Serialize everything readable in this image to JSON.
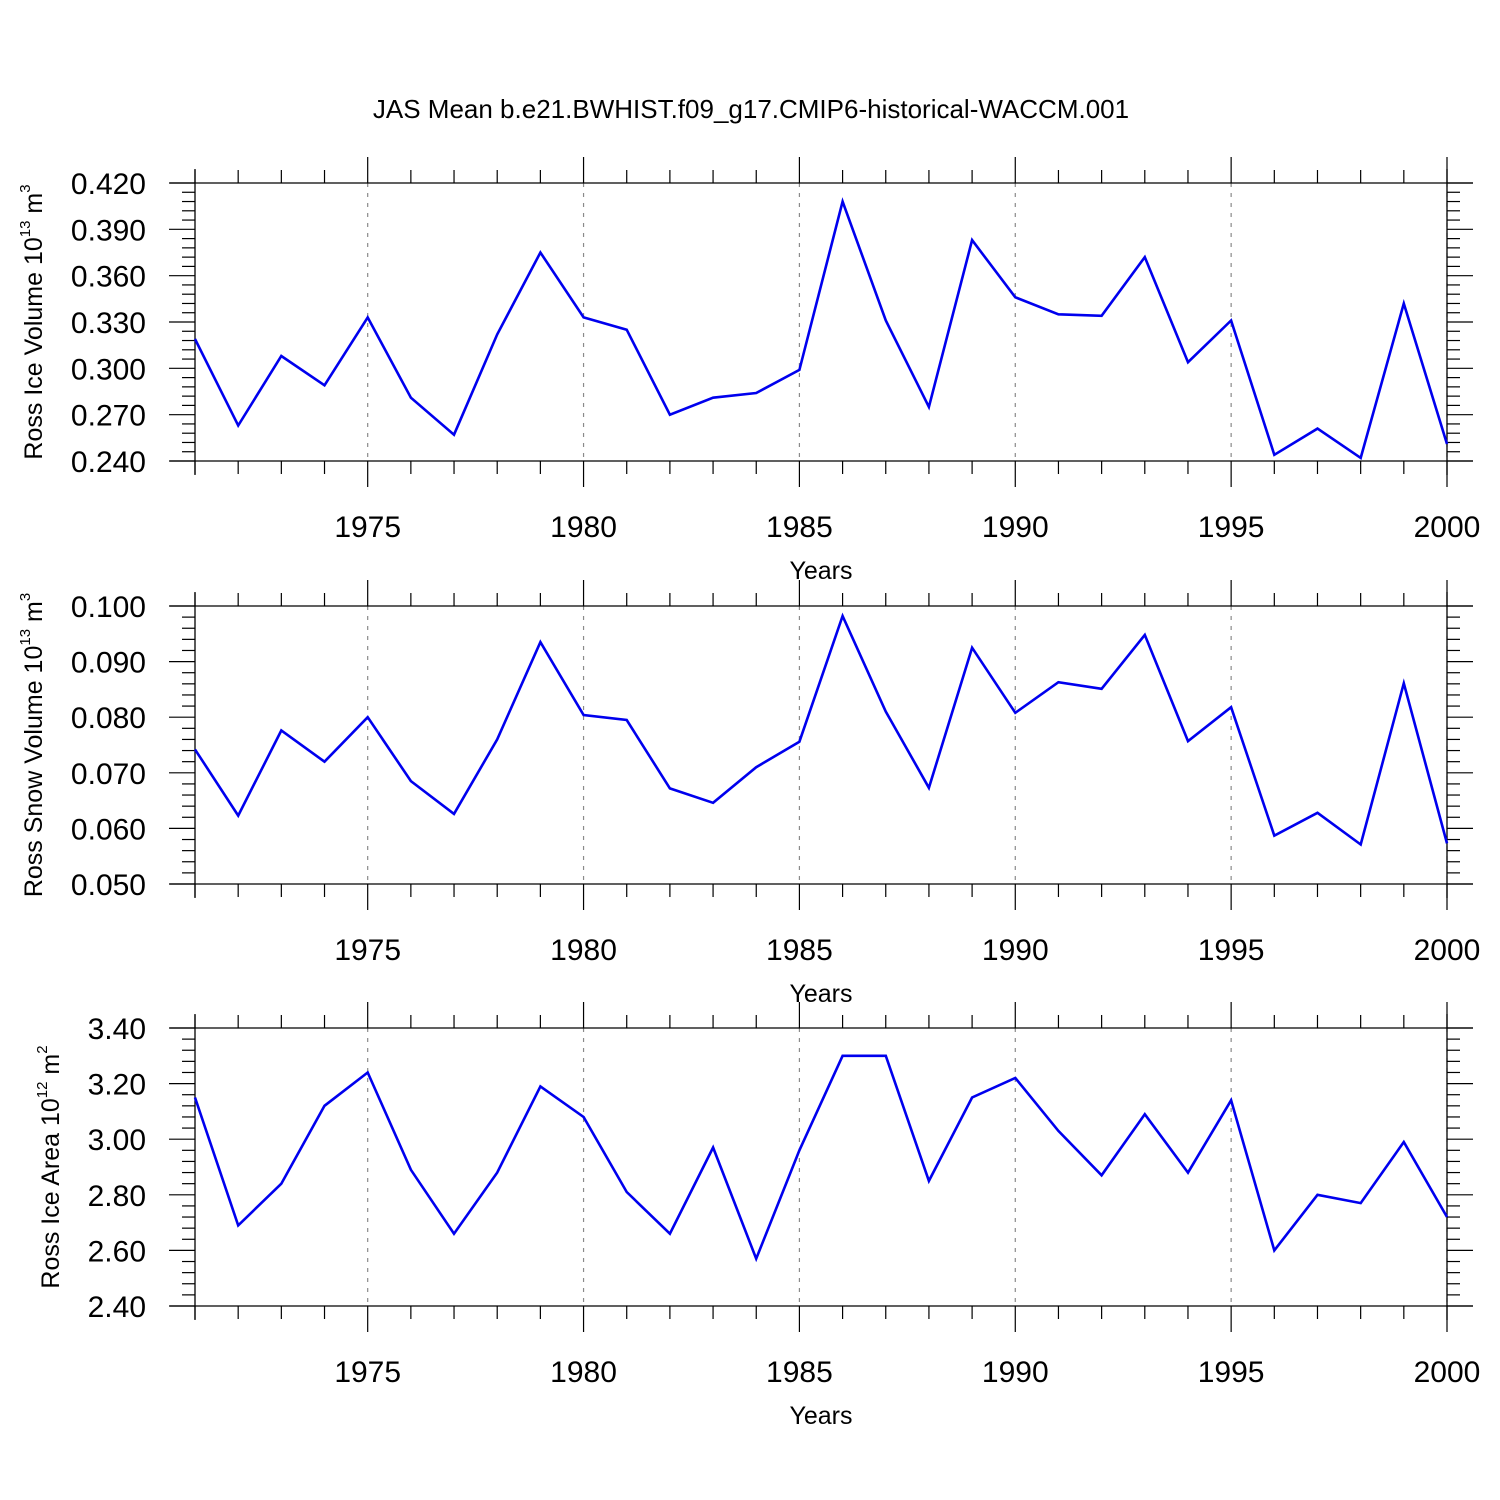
{
  "chart_data": {
    "title": "JAS Mean b.e21.BWHIST.f09_g17.CMIP6-historical-WACCM.001",
    "panels": [
      {
        "type": "line",
        "ylabel": "Ross Ice Volume 10",
        "ylabel_exp": "13",
        "ylabel_unit": " m",
        "ylabel_unit_exp": "3",
        "xlabel": "Years",
        "xlim": [
          1971,
          2000
        ],
        "ylim": [
          0.24,
          0.42
        ],
        "yticks": [
          "0.420",
          "0.390",
          "0.360",
          "0.330",
          "0.300",
          "0.270",
          "0.240"
        ],
        "ytick_values": [
          0.42,
          0.39,
          0.36,
          0.33,
          0.3,
          0.27,
          0.24
        ],
        "xticks": [
          "1975",
          "1980",
          "1985",
          "1990",
          "1995",
          "2000"
        ],
        "xtick_values": [
          1975,
          1980,
          1985,
          1990,
          1995,
          2000
        ],
        "line_color": "#0000ee",
        "x": [
          1971,
          1972,
          1973,
          1974,
          1975,
          1976,
          1977,
          1978,
          1979,
          1980,
          1981,
          1982,
          1983,
          1984,
          1985,
          1986,
          1987,
          1988,
          1989,
          1990,
          1991,
          1992,
          1993,
          1994,
          1995,
          1996,
          1997,
          1998,
          1999,
          2000
        ],
        "values": [
          0.319,
          0.263,
          0.308,
          0.289,
          0.333,
          0.281,
          0.257,
          0.322,
          0.375,
          0.333,
          0.325,
          0.27,
          0.281,
          0.284,
          0.299,
          0.408,
          0.331,
          0.275,
          0.383,
          0.346,
          0.335,
          0.334,
          0.372,
          0.304,
          0.331,
          0.244,
          0.261,
          0.242,
          0.342,
          0.251
        ]
      },
      {
        "type": "line",
        "ylabel": "Ross Snow Volume 10",
        "ylabel_exp": "13",
        "ylabel_unit": " m",
        "ylabel_unit_exp": "3",
        "xlabel": "Years",
        "xlim": [
          1971,
          2000
        ],
        "ylim": [
          0.05,
          0.1
        ],
        "yticks": [
          "0.100",
          "0.090",
          "0.080",
          "0.070",
          "0.060",
          "0.050"
        ],
        "ytick_values": [
          0.1,
          0.09,
          0.08,
          0.07,
          0.06,
          0.05
        ],
        "xticks": [
          "1975",
          "1980",
          "1985",
          "1990",
          "1995",
          "2000"
        ],
        "xtick_values": [
          1975,
          1980,
          1985,
          1990,
          1995,
          2000
        ],
        "line_color": "#0000ee",
        "x": [
          1971,
          1972,
          1973,
          1974,
          1975,
          1976,
          1977,
          1978,
          1979,
          1980,
          1981,
          1982,
          1983,
          1984,
          1985,
          1986,
          1987,
          1988,
          1989,
          1990,
          1991,
          1992,
          1993,
          1994,
          1995,
          1996,
          1997,
          1998,
          1999,
          2000
        ],
        "values": [
          0.0742,
          0.0623,
          0.0776,
          0.072,
          0.08,
          0.0685,
          0.0626,
          0.076,
          0.0935,
          0.0804,
          0.0795,
          0.0672,
          0.0646,
          0.071,
          0.0756,
          0.0982,
          0.081,
          0.0673,
          0.0925,
          0.0808,
          0.0863,
          0.0851,
          0.0948,
          0.0757,
          0.0818,
          0.0587,
          0.0628,
          0.0571,
          0.0861,
          0.0573
        ]
      },
      {
        "type": "line",
        "ylabel": "Ross Ice Area 10",
        "ylabel_exp": "12",
        "ylabel_unit": " m",
        "ylabel_unit_exp": "2",
        "xlabel": "Years",
        "xlim": [
          1971,
          2000
        ],
        "ylim": [
          2.4,
          3.4
        ],
        "yticks": [
          "3.40",
          "3.20",
          "3.00",
          "2.80",
          "2.60",
          "2.40"
        ],
        "ytick_values": [
          3.4,
          3.2,
          3.0,
          2.8,
          2.6,
          2.4
        ],
        "xticks": [
          "1975",
          "1980",
          "1985",
          "1990",
          "1995",
          "2000"
        ],
        "xtick_values": [
          1975,
          1980,
          1985,
          1990,
          1995,
          2000
        ],
        "line_color": "#0000ee",
        "x": [
          1971,
          1972,
          1973,
          1974,
          1975,
          1976,
          1977,
          1978,
          1979,
          1980,
          1981,
          1982,
          1983,
          1984,
          1985,
          1986,
          1987,
          1988,
          1989,
          1990,
          1991,
          1992,
          1993,
          1994,
          1995,
          1996,
          1997,
          1998,
          1999,
          2000
        ],
        "values": [
          3.15,
          2.69,
          2.84,
          3.12,
          3.24,
          2.89,
          2.66,
          2.88,
          3.19,
          3.08,
          2.81,
          2.66,
          2.97,
          2.57,
          2.96,
          3.3,
          3.3,
          2.85,
          3.15,
          3.22,
          3.03,
          2.87,
          3.09,
          2.88,
          3.14,
          2.6,
          2.8,
          2.77,
          2.99,
          2.72
        ]
      }
    ]
  }
}
